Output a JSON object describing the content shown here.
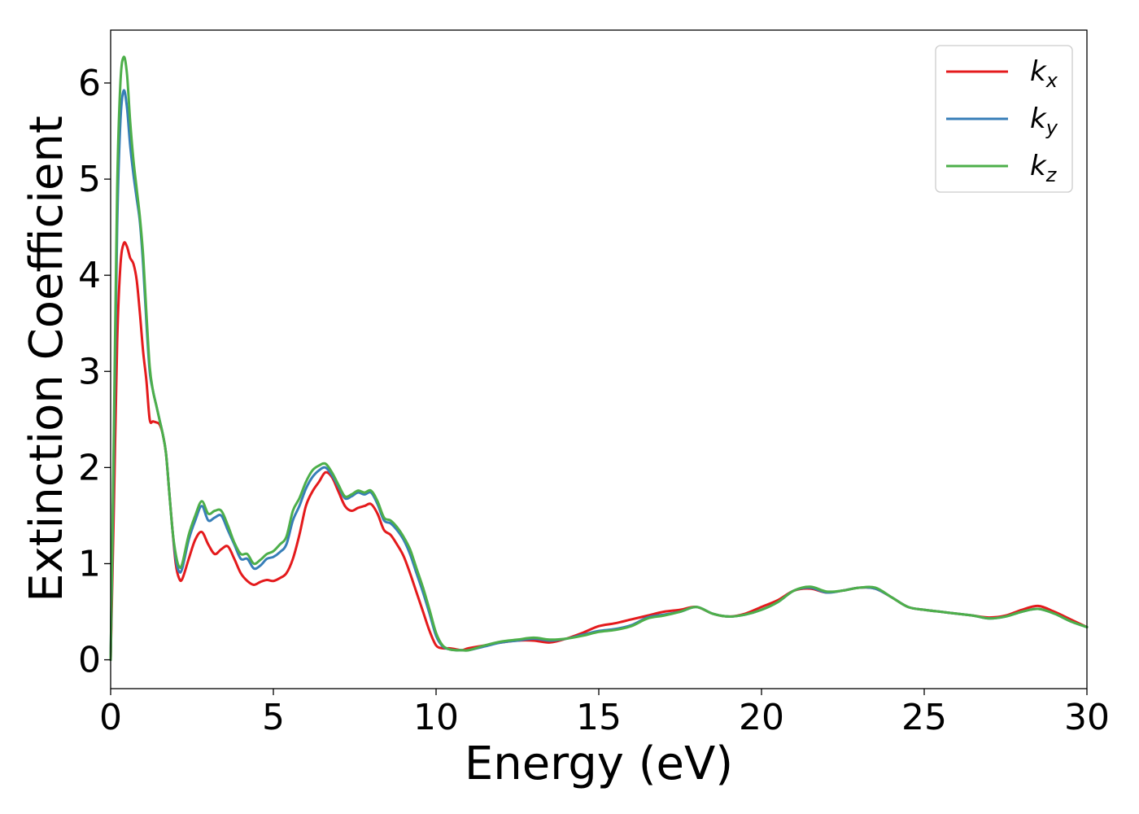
{
  "chart_data": {
    "type": "line",
    "title": "",
    "xlabel": "Energy (eV)",
    "ylabel": "Extinction Coefficient",
    "xlim": [
      0,
      30
    ],
    "ylim": [
      -0.3,
      6.55
    ],
    "xticks": [
      "0",
      "5",
      "10",
      "15",
      "20",
      "25",
      "30"
    ],
    "yticks": [
      "0",
      "1",
      "2",
      "3",
      "4",
      "5",
      "6"
    ],
    "grid": false,
    "legend": "top-right",
    "series": [
      {
        "name": "k_x",
        "base": "k",
        "sub": "x",
        "color": "#e41a1c",
        "x": [
          0,
          0.1,
          0.2,
          0.3,
          0.4,
          0.5,
          0.6,
          0.7,
          0.8,
          0.9,
          1.0,
          1.1,
          1.2,
          1.3,
          1.4,
          1.5,
          1.6,
          1.7,
          1.8,
          1.9,
          2.0,
          2.1,
          2.2,
          2.4,
          2.6,
          2.8,
          3.0,
          3.2,
          3.4,
          3.6,
          3.8,
          4.0,
          4.2,
          4.4,
          4.6,
          4.8,
          5.0,
          5.2,
          5.4,
          5.6,
          5.8,
          6.0,
          6.2,
          6.4,
          6.6,
          6.8,
          7.0,
          7.2,
          7.4,
          7.6,
          7.8,
          8.0,
          8.2,
          8.4,
          8.6,
          8.8,
          9.0,
          9.2,
          9.4,
          9.6,
          9.8,
          10.0,
          10.2,
          10.4,
          10.6,
          10.8,
          11.0,
          11.5,
          12.0,
          12.5,
          13.0,
          13.5,
          14.0,
          14.5,
          15.0,
          15.5,
          16.0,
          16.5,
          17.0,
          17.5,
          18.0,
          18.5,
          19.0,
          19.5,
          20.0,
          20.5,
          21.0,
          21.5,
          22.0,
          22.5,
          23.0,
          23.5,
          24.0,
          24.5,
          25.0,
          25.5,
          26.0,
          26.5,
          27.0,
          27.5,
          28.0,
          28.5,
          29.0,
          29.5,
          30.0
        ],
        "y": [
          0.0,
          1.6,
          3.3,
          4.1,
          4.33,
          4.3,
          4.18,
          4.12,
          3.95,
          3.6,
          3.2,
          2.9,
          2.5,
          2.48,
          2.47,
          2.45,
          2.35,
          2.15,
          1.75,
          1.35,
          1.0,
          0.85,
          0.84,
          1.05,
          1.25,
          1.33,
          1.2,
          1.1,
          1.15,
          1.18,
          1.05,
          0.9,
          0.82,
          0.78,
          0.81,
          0.83,
          0.82,
          0.85,
          0.9,
          1.05,
          1.3,
          1.6,
          1.75,
          1.85,
          1.95,
          1.9,
          1.75,
          1.6,
          1.55,
          1.58,
          1.6,
          1.62,
          1.52,
          1.35,
          1.3,
          1.2,
          1.08,
          0.9,
          0.7,
          0.5,
          0.3,
          0.15,
          0.12,
          0.12,
          0.11,
          0.1,
          0.12,
          0.15,
          0.18,
          0.2,
          0.2,
          0.18,
          0.22,
          0.28,
          0.35,
          0.38,
          0.42,
          0.46,
          0.5,
          0.52,
          0.55,
          0.48,
          0.45,
          0.48,
          0.55,
          0.62,
          0.72,
          0.74,
          0.7,
          0.72,
          0.75,
          0.74,
          0.65,
          0.55,
          0.52,
          0.5,
          0.48,
          0.46,
          0.44,
          0.46,
          0.52,
          0.56,
          0.5,
          0.42,
          0.34
        ]
      },
      {
        "name": "k_y",
        "base": "k",
        "sub": "y",
        "color": "#377eb8",
        "x": [
          0,
          0.1,
          0.2,
          0.3,
          0.4,
          0.5,
          0.6,
          0.7,
          0.8,
          0.9,
          1.0,
          1.1,
          1.2,
          1.3,
          1.4,
          1.5,
          1.6,
          1.7,
          1.8,
          1.9,
          2.0,
          2.1,
          2.2,
          2.4,
          2.6,
          2.8,
          3.0,
          3.2,
          3.4,
          3.6,
          3.8,
          4.0,
          4.2,
          4.4,
          4.6,
          4.8,
          5.0,
          5.2,
          5.4,
          5.6,
          5.8,
          6.0,
          6.2,
          6.4,
          6.6,
          6.8,
          7.0,
          7.2,
          7.4,
          7.6,
          7.8,
          8.0,
          8.2,
          8.4,
          8.6,
          8.8,
          9.0,
          9.2,
          9.4,
          9.6,
          9.8,
          10.0,
          10.2,
          10.4,
          10.6,
          10.8,
          11.0,
          11.5,
          12.0,
          12.5,
          13.0,
          13.5,
          14.0,
          14.5,
          15.0,
          15.5,
          16.0,
          16.5,
          17.0,
          17.5,
          18.0,
          18.5,
          19.0,
          19.5,
          20.0,
          20.5,
          21.0,
          21.5,
          22.0,
          22.5,
          23.0,
          23.5,
          24.0,
          24.5,
          25.0,
          25.5,
          26.0,
          26.5,
          27.0,
          27.5,
          28.0,
          28.5,
          29.0,
          29.5,
          30.0
        ],
        "y": [
          0.0,
          2.2,
          4.5,
          5.6,
          5.92,
          5.75,
          5.35,
          5.05,
          4.8,
          4.55,
          4.1,
          3.5,
          3.0,
          2.8,
          2.65,
          2.5,
          2.35,
          2.15,
          1.75,
          1.35,
          1.05,
          0.92,
          0.95,
          1.25,
          1.45,
          1.6,
          1.45,
          1.48,
          1.5,
          1.35,
          1.2,
          1.05,
          1.05,
          0.95,
          0.98,
          1.05,
          1.07,
          1.12,
          1.2,
          1.45,
          1.6,
          1.78,
          1.9,
          1.97,
          2.0,
          1.92,
          1.8,
          1.68,
          1.7,
          1.74,
          1.72,
          1.74,
          1.62,
          1.45,
          1.42,
          1.35,
          1.25,
          1.1,
          0.9,
          0.7,
          0.48,
          0.25,
          0.14,
          0.11,
          0.1,
          0.1,
          0.1,
          0.14,
          0.18,
          0.2,
          0.22,
          0.2,
          0.22,
          0.26,
          0.3,
          0.32,
          0.36,
          0.44,
          0.47,
          0.5,
          0.55,
          0.48,
          0.45,
          0.47,
          0.52,
          0.6,
          0.72,
          0.75,
          0.7,
          0.72,
          0.75,
          0.74,
          0.65,
          0.55,
          0.52,
          0.5,
          0.48,
          0.46,
          0.43,
          0.45,
          0.5,
          0.53,
          0.48,
          0.4,
          0.34
        ]
      },
      {
        "name": "k_z",
        "base": "k",
        "sub": "z",
        "color": "#4daf4a",
        "x": [
          0,
          0.1,
          0.2,
          0.3,
          0.4,
          0.5,
          0.6,
          0.7,
          0.8,
          0.9,
          1.0,
          1.1,
          1.2,
          1.3,
          1.4,
          1.5,
          1.6,
          1.7,
          1.8,
          1.9,
          2.0,
          2.1,
          2.2,
          2.4,
          2.6,
          2.8,
          3.0,
          3.2,
          3.4,
          3.6,
          3.8,
          4.0,
          4.2,
          4.4,
          4.6,
          4.8,
          5.0,
          5.2,
          5.4,
          5.6,
          5.8,
          6.0,
          6.2,
          6.4,
          6.6,
          6.8,
          7.0,
          7.2,
          7.4,
          7.6,
          7.8,
          8.0,
          8.2,
          8.4,
          8.6,
          8.8,
          9.0,
          9.2,
          9.4,
          9.6,
          9.8,
          10.0,
          10.2,
          10.4,
          10.6,
          10.8,
          11.0,
          11.5,
          12.0,
          12.5,
          13.0,
          13.5,
          14.0,
          14.5,
          15.0,
          15.5,
          16.0,
          16.5,
          17.0,
          17.5,
          18.0,
          18.5,
          19.0,
          19.5,
          20.0,
          20.5,
          21.0,
          21.5,
          22.0,
          22.5,
          23.0,
          23.5,
          24.0,
          24.5,
          25.0,
          25.5,
          26.0,
          26.5,
          27.0,
          27.5,
          28.0,
          28.5,
          29.0,
          29.5,
          30.0
        ],
        "y": [
          0.0,
          2.4,
          4.9,
          6.0,
          6.27,
          6.1,
          5.6,
          5.2,
          4.9,
          4.6,
          4.2,
          3.6,
          3.05,
          2.8,
          2.65,
          2.5,
          2.35,
          2.15,
          1.75,
          1.35,
          1.1,
          0.97,
          1.0,
          1.3,
          1.5,
          1.65,
          1.52,
          1.55,
          1.55,
          1.4,
          1.22,
          1.1,
          1.1,
          1.0,
          1.04,
          1.1,
          1.13,
          1.2,
          1.28,
          1.55,
          1.68,
          1.85,
          1.97,
          2.02,
          2.04,
          1.95,
          1.82,
          1.7,
          1.72,
          1.76,
          1.74,
          1.76,
          1.65,
          1.48,
          1.45,
          1.38,
          1.28,
          1.15,
          0.95,
          0.75,
          0.52,
          0.28,
          0.15,
          0.11,
          0.1,
          0.1,
          0.1,
          0.15,
          0.19,
          0.21,
          0.23,
          0.21,
          0.22,
          0.25,
          0.29,
          0.31,
          0.35,
          0.43,
          0.46,
          0.5,
          0.55,
          0.48,
          0.45,
          0.47,
          0.52,
          0.6,
          0.72,
          0.76,
          0.71,
          0.72,
          0.75,
          0.75,
          0.65,
          0.55,
          0.52,
          0.5,
          0.48,
          0.46,
          0.43,
          0.45,
          0.5,
          0.53,
          0.48,
          0.4,
          0.34
        ]
      }
    ]
  }
}
